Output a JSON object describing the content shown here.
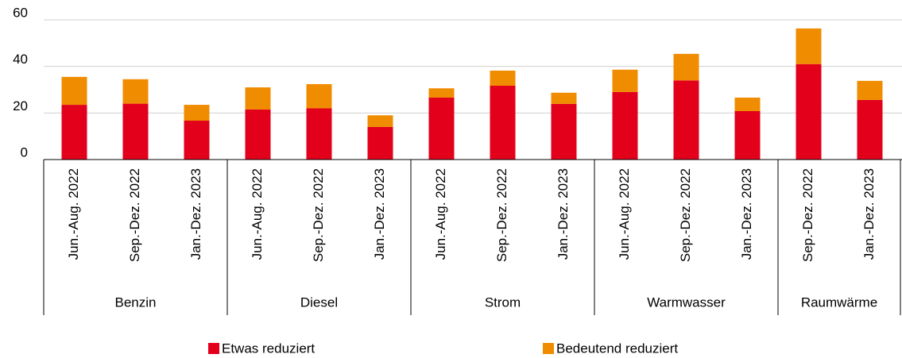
{
  "chart_data": {
    "type": "stacked_bar",
    "groups": [
      {
        "name": "Benzin",
        "categories": [
          "Jun.-Aug. 2022",
          "Sep.-Dez. 2022",
          "Jan.-Dez. 2023"
        ]
      },
      {
        "name": "Diesel",
        "categories": [
          "Jun.-Aug. 2022",
          "Sep.-Dez. 2022",
          "Jan.-Dez. 2023"
        ]
      },
      {
        "name": "Strom",
        "categories": [
          "Jun.-Aug. 2022",
          "Sep.-Dez. 2022",
          "Jan.-Dez. 2023"
        ]
      },
      {
        "name": "Warmwasser",
        "categories": [
          "Jun.-Aug. 2022",
          "Sep.-Dez. 2022",
          "Jan.-Dez. 2023"
        ]
      },
      {
        "name": "Raumwärme",
        "categories": [
          "Sep.-Dez. 2022",
          "Jan.-Dez. 2023"
        ]
      }
    ],
    "series": [
      {
        "name": "Etwas reduziert",
        "color": "#e3001b",
        "values": [
          23.5,
          24,
          16.7,
          21.5,
          22,
          14,
          26.6,
          31.7,
          23.9,
          29,
          34,
          20.8,
          41,
          25.6
        ]
      },
      {
        "name": "Bedeutend reduziert",
        "color": "#f08c00",
        "values": [
          12,
          10.5,
          6.8,
          9.5,
          10.4,
          5,
          4,
          6.5,
          4.8,
          9.6,
          11.4,
          5.8,
          15.3,
          8.2
        ]
      }
    ],
    "ylim": [
      0,
      60
    ],
    "yticks": [
      0,
      20,
      40,
      60
    ],
    "grid": true
  }
}
